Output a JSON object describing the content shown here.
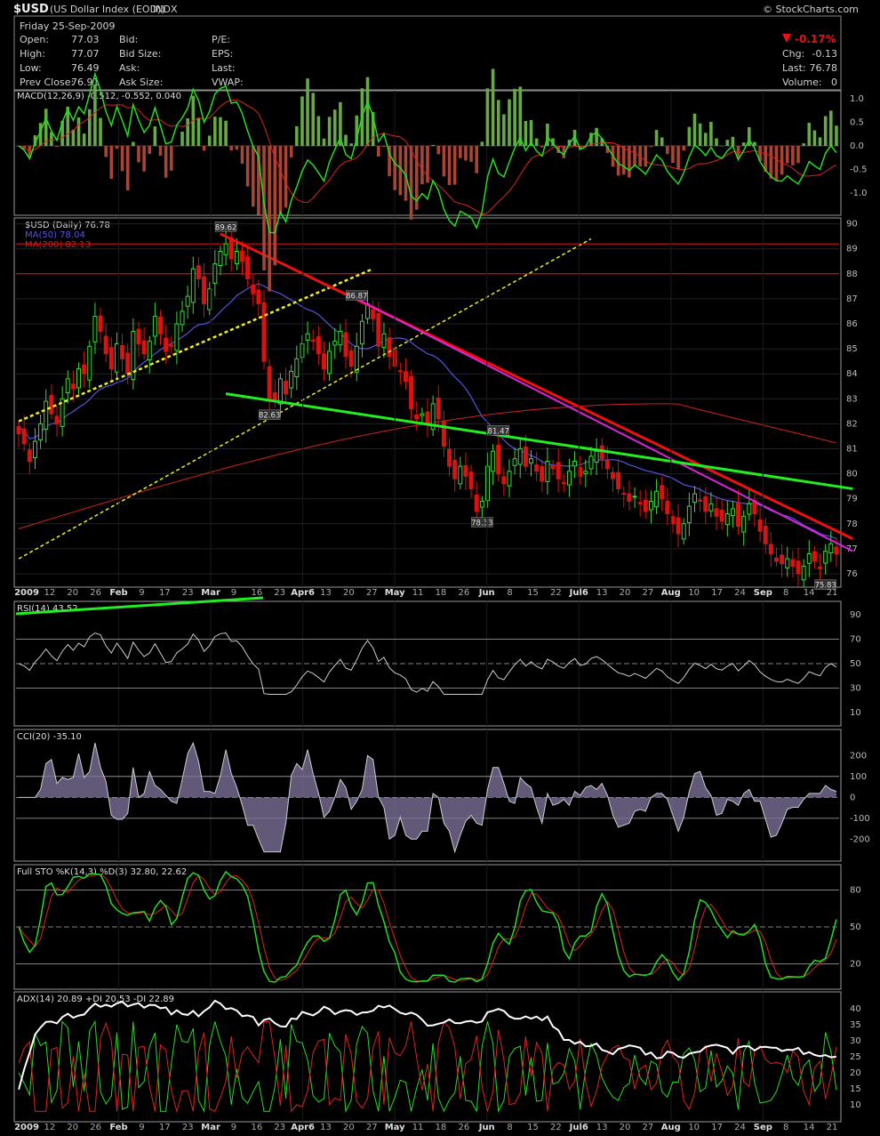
{
  "header": {
    "symbol": "$USD",
    "name": "(US Dollar Index (EOD))",
    "exchange": "INDX",
    "watermark": "© StockCharts.com",
    "date": "Friday  25-Sep-2009",
    "open_label": "Open:",
    "open": "77.03",
    "high_label": "High:",
    "high": "77.07",
    "low_label": "Low:",
    "low": "76.49",
    "prev_label": "Prev Close:",
    "prev": "76.91",
    "bid_label": "Bid:",
    "ask_label": "Ask:",
    "bidsize_label": "Bid Size:",
    "asksize_label": "Ask Size:",
    "pe_label": "P/E:",
    "eps_label": "EPS:",
    "last_label": "Last:",
    "vwap_label": "VWAP:",
    "pct": "-0.17%",
    "chg_label": "Chg:",
    "chg": "-0.13",
    "last2_label": "Last:",
    "last2": "76.78",
    "vol_label": "Volume:",
    "vol": "0"
  },
  "colors": {
    "up": "#33dd33",
    "down": "#dd1111",
    "ma50": "#5555dd",
    "ma200": "#cc2222",
    "green_line": "#22ee22",
    "red_line": "#ee1111",
    "magenta_line": "#dd22dd",
    "yellow": "#eeee22",
    "background": "#000000",
    "grid": "#bbbbbb"
  },
  "chart_data": [
    {
      "type": "candlestick",
      "title": "$USD (Daily) 76.78",
      "legend": [
        "MA(50) 78.04",
        "MA(200) 82.13"
      ],
      "ylim": [
        75.5,
        90.2
      ],
      "yticks": [
        76,
        77,
        78,
        79,
        80,
        81,
        82,
        83,
        84,
        85,
        86,
        87,
        88,
        89,
        90
      ],
      "x_ticks": [
        "2009",
        "12",
        "20",
        "26",
        "Feb",
        "9",
        "17",
        "23",
        "Mar",
        "9",
        "16",
        "23",
        "Apr6",
        "13",
        "20",
        "27",
        "May",
        "11",
        "18",
        "26",
        "Jun",
        "8",
        "15",
        "22",
        "Jul6",
        "13",
        "20",
        "27",
        "Aug",
        "10",
        "17",
        "24",
        "Sep",
        "8",
        "14",
        "21"
      ],
      "annotations": [
        "89.62",
        "86.87",
        "82.63",
        "81.47",
        "78.33",
        "75.83"
      ],
      "closes": [
        81.6,
        81.2,
        80.5,
        81.3,
        82.0,
        82.9,
        82.4,
        82.0,
        83.0,
        83.8,
        83.4,
        84.2,
        84.0,
        85.1,
        86.3,
        85.7,
        84.8,
        84.2,
        85.2,
        84.6,
        84.0,
        85.7,
        85.2,
        84.8,
        85.3,
        86.3,
        85.6,
        84.9,
        85.1,
        86.0,
        86.5,
        87.1,
        88.2,
        87.8,
        86.8,
        87.4,
        88.4,
        88.9,
        89.2,
        88.6,
        88.9,
        88.5,
        87.8,
        87.2,
        86.8,
        84.5,
        83.0,
        82.9,
        83.8,
        83.2,
        84.1,
        84.6,
        85.2,
        85.6,
        85.3,
        84.8,
        84.2,
        84.9,
        85.3,
        85.7,
        84.7,
        84.3,
        85.1,
        86.1,
        86.8,
        86.2,
        85.1,
        85.6,
        84.7,
        84.3,
        84.1,
        83.7,
        82.6,
        82.2,
        82.4,
        82.0,
        82.8,
        82.2,
        81.1,
        80.3,
        79.8,
        80.3,
        79.9,
        79.4,
        78.5,
        78.9,
        80.3,
        80.9,
        80.0,
        79.6,
        80.1,
        80.6,
        81.0,
        80.3,
        80.6,
        80.1,
        79.7,
        80.5,
        80.2,
        79.8,
        79.6,
        80.1,
        80.5,
        79.9,
        80.1,
        80.7,
        80.9,
        80.6,
        80.2,
        79.8,
        79.4,
        79.2,
        78.9,
        79.1,
        78.8,
        78.5,
        78.9,
        79.3,
        79.0,
        78.4,
        78.0,
        77.6,
        78.0,
        78.7,
        79.2,
        78.9,
        78.5,
        78.8,
        78.3,
        78.1,
        78.4,
        78.6,
        77.9,
        78.3,
        78.8,
        78.4,
        77.7,
        77.2,
        76.8,
        76.5,
        76.4,
        76.6,
        76.3,
        76.0,
        76.3,
        76.8,
        76.5,
        76.2,
        76.9,
        77.2,
        76.8
      ]
    },
    {
      "type": "line",
      "title": "MACD(12,26,9) -0.512, -0.552, 0.040",
      "ylim": [
        -1.45,
        1.15
      ],
      "yticks": [
        "1.0",
        "0.5",
        "0.0",
        "-0.5",
        "-1.0"
      ]
    },
    {
      "type": "line",
      "title": "RSI(14) 43.52",
      "ylim": [
        0,
        100
      ],
      "yticks": [
        "90",
        "70",
        "50",
        "30",
        "10"
      ],
      "levels": [
        70,
        50,
        30
      ]
    },
    {
      "type": "area",
      "title": "CCI(20) -35.10",
      "ylim": [
        -300,
        320
      ],
      "yticks": [
        "200",
        "100",
        "0",
        "-100",
        "-200"
      ],
      "levels": [
        100,
        0,
        -100
      ]
    },
    {
      "type": "line",
      "title": "Full STO %K(14,3) %D(3) 32.80, 22.62",
      "ylim": [
        0,
        100
      ],
      "yticks": [
        "80",
        "50",
        "20"
      ],
      "levels": [
        80,
        50,
        20
      ]
    },
    {
      "type": "line",
      "title": "ADX(14) 20.89 +DI 20.53 -DI 22.89",
      "ylim": [
        5,
        45
      ],
      "yticks": [
        "40",
        "35",
        "30",
        "25",
        "20",
        "15",
        "10"
      ]
    }
  ]
}
